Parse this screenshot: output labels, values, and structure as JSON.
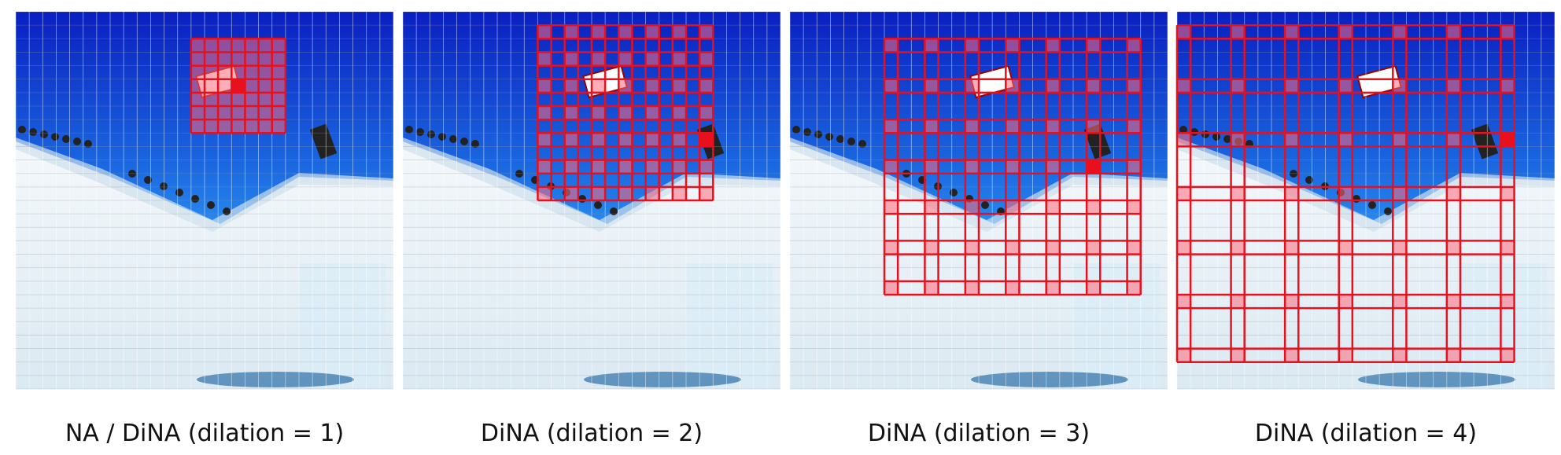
{
  "panels": [
    {
      "caption": "NA / DiNA (dilation = 1)"
    },
    {
      "caption": "DiNA (dilation = 2)"
    },
    {
      "caption": "DiNA (dilation = 3)"
    },
    {
      "caption": "DiNA (dilation = 4)"
    }
  ]
}
